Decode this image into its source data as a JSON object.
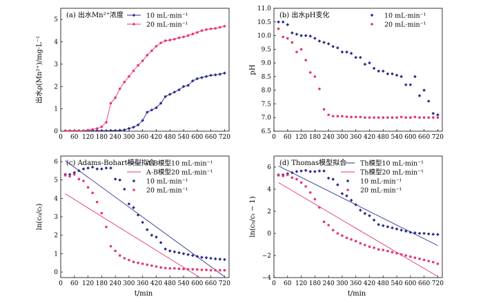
{
  "colors": {
    "s10": "#2b2b8c",
    "s20": "#e8336f",
    "axis": "#000000"
  },
  "xlabel": "t/min",
  "chart_data": [
    {
      "type": "line",
      "title": "(a) 出水Mn²⁺浓度",
      "ylabel": "出水ρ(Mn²⁺)/mg·L⁻¹",
      "xlabel": "",
      "xlim": [
        0,
        740
      ],
      "ylim": [
        0,
        5.5
      ],
      "xticks": [
        "0",
        "60",
        "120",
        "180",
        "240",
        "300",
        "360",
        "420",
        "480",
        "540",
        "600",
        "660",
        "720"
      ],
      "yticks": [
        "0",
        "1",
        "2",
        "3",
        "4",
        "5"
      ],
      "legend_position": "top-right",
      "series": [
        {
          "name": "10 mL·min⁻¹",
          "color": "#2b2b8c",
          "marker": "diamond",
          "line": true,
          "x": [
            20,
            40,
            60,
            80,
            100,
            120,
            140,
            160,
            180,
            200,
            220,
            240,
            260,
            280,
            300,
            320,
            340,
            360,
            380,
            400,
            420,
            440,
            460,
            480,
            500,
            520,
            540,
            560,
            580,
            600,
            620,
            640,
            660,
            680,
            700,
            720
          ],
          "y": [
            0.02,
            0.02,
            0.02,
            0.02,
            0.02,
            0.02,
            0.02,
            0.02,
            0.02,
            0.02,
            0.03,
            0.03,
            0.04,
            0.06,
            0.12,
            0.18,
            0.28,
            0.48,
            0.85,
            0.95,
            1.05,
            1.25,
            1.55,
            1.65,
            1.75,
            1.85,
            2.0,
            2.05,
            2.25,
            2.35,
            2.4,
            2.45,
            2.5,
            2.52,
            2.55,
            2.6
          ]
        },
        {
          "name": "20 mL·min⁻¹",
          "color": "#e8336f",
          "marker": "circle",
          "line": true,
          "x": [
            20,
            40,
            60,
            80,
            100,
            120,
            140,
            160,
            180,
            200,
            220,
            240,
            260,
            280,
            300,
            320,
            340,
            360,
            380,
            400,
            420,
            440,
            460,
            480,
            500,
            520,
            540,
            560,
            580,
            600,
            620,
            640,
            660,
            680,
            700,
            720
          ],
          "y": [
            0.02,
            0.02,
            0.02,
            0.02,
            0.02,
            0.05,
            0.08,
            0.12,
            0.2,
            0.4,
            1.25,
            1.5,
            1.9,
            2.2,
            2.45,
            2.7,
            2.95,
            3.15,
            3.4,
            3.6,
            3.8,
            3.95,
            4.05,
            4.08,
            4.12,
            4.18,
            4.22,
            4.28,
            4.35,
            4.42,
            4.5,
            4.55,
            4.58,
            4.6,
            4.65,
            4.7
          ]
        }
      ]
    },
    {
      "type": "scatter",
      "title": "(b) 出水pH变化",
      "ylabel": "pH",
      "xlabel": "",
      "xlim": [
        0,
        740
      ],
      "ylim": [
        6.5,
        11.0
      ],
      "xticks": [
        "0",
        "60",
        "120",
        "180",
        "240",
        "300",
        "360",
        "420",
        "480",
        "540",
        "600",
        "660",
        "720"
      ],
      "yticks": [
        "6.5",
        "7.0",
        "7.5",
        "8.0",
        "8.5",
        "9.0",
        "9.5",
        "10.0",
        "10.5",
        "11.0"
      ],
      "legend_position": "top-right",
      "series": [
        {
          "name": "10 mL·min⁻¹",
          "color": "#2b2b8c",
          "marker": "diamond",
          "x": [
            20,
            40,
            60,
            80,
            100,
            120,
            140,
            160,
            180,
            200,
            220,
            240,
            260,
            280,
            300,
            320,
            340,
            360,
            380,
            400,
            420,
            440,
            460,
            480,
            500,
            520,
            540,
            560,
            580,
            600,
            620,
            640,
            660,
            680,
            700,
            720
          ],
          "y": [
            10.5,
            10.5,
            10.4,
            10.1,
            10.05,
            10.0,
            10.0,
            9.98,
            9.9,
            9.8,
            9.75,
            9.7,
            9.6,
            9.55,
            9.4,
            9.4,
            9.35,
            9.2,
            9.2,
            8.95,
            9.0,
            8.8,
            8.7,
            8.7,
            8.6,
            8.6,
            8.55,
            8.5,
            8.2,
            8.2,
            8.5,
            7.8,
            8.0,
            7.6,
            7.15,
            7.1
          ]
        },
        {
          "name": "20 mL·min⁻¹",
          "color": "#e8336f",
          "marker": "circle",
          "x": [
            20,
            40,
            60,
            80,
            100,
            120,
            140,
            160,
            180,
            200,
            220,
            240,
            260,
            280,
            300,
            320,
            340,
            360,
            380,
            400,
            420,
            440,
            460,
            480,
            500,
            520,
            540,
            560,
            580,
            600,
            620,
            640,
            660,
            680,
            700,
            720
          ],
          "y": [
            10.25,
            9.95,
            9.9,
            9.75,
            9.4,
            9.5,
            9.1,
            8.65,
            8.5,
            8.05,
            7.3,
            7.1,
            7.05,
            7.05,
            7.05,
            7.03,
            7.02,
            7.02,
            7.02,
            7.0,
            7.0,
            7.0,
            7.0,
            7.0,
            7.0,
            7.0,
            7.0,
            7.02,
            7.0,
            7.0,
            7.02,
            7.0,
            7.0,
            7.0,
            7.0,
            7.0
          ]
        }
      ]
    },
    {
      "type": "scatter",
      "title": "(c) Adams-Bohart模型拟合",
      "ylabel": "ln(c₀/cₜ)",
      "xlabel": "t/min",
      "xlim": [
        0,
        740
      ],
      "ylim": [
        -0.3,
        6.3
      ],
      "xticks": [
        "0",
        "60",
        "120",
        "180",
        "240",
        "300",
        "360",
        "420",
        "480",
        "540",
        "600",
        "660",
        "720"
      ],
      "yticks": [
        "0",
        "1",
        "2",
        "3",
        "4",
        "5",
        "6"
      ],
      "legend_position": "top-right",
      "series": [
        {
          "name": "A-B模型10 mL·min⁻¹",
          "color": "#2b2b8c",
          "marker": "none",
          "line": true,
          "x": [
            20,
            720
          ],
          "y": [
            6.05,
            -0.25
          ]
        },
        {
          "name": "A-B模型20 mL·min⁻¹",
          "color": "#e8336f",
          "marker": "none",
          "line": true,
          "x": [
            20,
            610
          ],
          "y": [
            4.25,
            -0.28
          ]
        },
        {
          "name": "10 mL·min⁻¹",
          "color": "#2b2b8c",
          "marker": "diamond",
          "x": [
            20,
            40,
            60,
            80,
            100,
            120,
            140,
            160,
            180,
            200,
            220,
            240,
            260,
            280,
            300,
            320,
            340,
            360,
            380,
            400,
            420,
            440,
            460,
            480,
            500,
            520,
            540,
            560,
            580,
            600,
            620,
            640,
            660,
            680,
            700,
            720
          ],
          "y": [
            5.3,
            5.3,
            5.4,
            5.5,
            5.6,
            5.65,
            5.7,
            5.6,
            5.6,
            5.65,
            5.65,
            5.05,
            5.0,
            4.5,
            3.7,
            3.5,
            3.1,
            2.7,
            2.3,
            2.0,
            1.9,
            1.6,
            1.25,
            1.15,
            1.1,
            1.05,
            1.0,
            0.95,
            0.9,
            0.85,
            0.8,
            0.78,
            0.75,
            0.72,
            0.7,
            0.68
          ]
        },
        {
          "name": "20 mL·min⁻¹",
          "color": "#e8336f",
          "marker": "circle",
          "x": [
            20,
            40,
            60,
            80,
            100,
            120,
            140,
            160,
            180,
            200,
            220,
            240,
            260,
            280,
            300,
            320,
            340,
            360,
            380,
            400,
            420,
            440,
            460,
            480,
            500,
            520,
            540,
            560,
            580,
            600,
            620,
            640,
            660,
            680,
            700,
            720
          ],
          "y": [
            5.25,
            5.2,
            5.3,
            5.05,
            4.95,
            4.6,
            4.3,
            3.8,
            3.2,
            2.45,
            1.4,
            1.15,
            0.9,
            0.75,
            0.65,
            0.55,
            0.5,
            0.45,
            0.4,
            0.35,
            0.3,
            0.25,
            0.22,
            0.2,
            0.2,
            0.18,
            0.17,
            0.15,
            0.15,
            0.14,
            0.12,
            0.12,
            0.1,
            0.1,
            0.1,
            0.1
          ]
        }
      ]
    },
    {
      "type": "scatter",
      "title": "(d) Thomas模型拟合",
      "ylabel": "ln(c₀/cₜ − 1)",
      "xlabel": "t/min",
      "xlim": [
        0,
        740
      ],
      "ylim": [
        -4,
        7
      ],
      "xticks": [
        "0",
        "60",
        "120",
        "180",
        "240",
        "300",
        "360",
        "420",
        "480",
        "540",
        "600",
        "660",
        "720"
      ],
      "yticks": [
        "−4",
        "−2",
        "0",
        "2",
        "4",
        "6"
      ],
      "legend_position": "top-right",
      "series": [
        {
          "name": "Th模型10 mL·min⁻¹",
          "color": "#2b2b8c",
          "marker": "none",
          "line": true,
          "x": [
            20,
            720
          ],
          "y": [
            6.1,
            -1.1
          ]
        },
        {
          "name": "Th模型20 mL·min⁻¹",
          "color": "#e8336f",
          "marker": "none",
          "line": true,
          "x": [
            20,
            720
          ],
          "y": [
            4.6,
            -3.9
          ]
        },
        {
          "name": "10 mL·min⁻¹",
          "color": "#2b2b8c",
          "marker": "diamond",
          "x": [
            20,
            40,
            60,
            80,
            100,
            120,
            140,
            160,
            180,
            200,
            220,
            240,
            260,
            280,
            300,
            320,
            340,
            360,
            380,
            400,
            420,
            440,
            460,
            480,
            500,
            520,
            540,
            560,
            580,
            600,
            620,
            640,
            660,
            680,
            700,
            720
          ],
          "y": [
            5.3,
            5.3,
            5.4,
            5.5,
            5.6,
            5.65,
            5.7,
            5.6,
            5.6,
            5.65,
            5.65,
            5.0,
            4.9,
            4.4,
            3.6,
            3.4,
            3.0,
            2.6,
            2.1,
            1.8,
            1.6,
            1.2,
            0.8,
            0.7,
            0.6,
            0.5,
            0.4,
            0.3,
            0.2,
            0.1,
            0.05,
            0.0,
            0.0,
            -0.05,
            -0.08,
            -0.1
          ]
        },
        {
          "name": "20 mL·min⁻¹",
          "color": "#e8336f",
          "marker": "circle",
          "x": [
            20,
            40,
            60,
            80,
            100,
            120,
            140,
            160,
            180,
            200,
            220,
            240,
            260,
            280,
            300,
            320,
            340,
            360,
            380,
            400,
            420,
            440,
            460,
            480,
            500,
            520,
            540,
            560,
            580,
            600,
            620,
            640,
            660,
            680,
            700,
            720
          ],
          "y": [
            5.25,
            5.2,
            5.3,
            5.05,
            4.9,
            4.6,
            4.25,
            3.7,
            3.1,
            2.35,
            1.05,
            0.75,
            0.3,
            0.0,
            -0.2,
            -0.4,
            -0.55,
            -0.7,
            -0.9,
            -1.05,
            -1.2,
            -1.3,
            -1.45,
            -1.5,
            -1.6,
            -1.7,
            -1.8,
            -1.9,
            -2.0,
            -2.1,
            -2.2,
            -2.3,
            -2.4,
            -2.5,
            -2.6,
            -2.75
          ]
        }
      ]
    }
  ]
}
